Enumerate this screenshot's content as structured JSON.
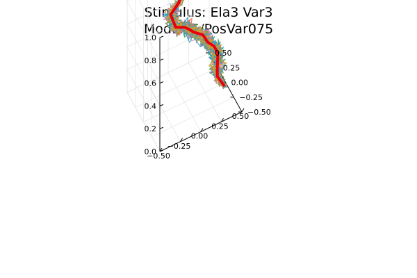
{
  "chart_data": {
    "type": "line3d",
    "title_lines": [
      "Stimulus: Ela3 Var3",
      "Modelv5/PosVar075"
    ],
    "xlabel": "",
    "ylabel": "",
    "zlabel": "",
    "xlim": [
      -0.5,
      0.5
    ],
    "ylim": [
      -0.5,
      0.5
    ],
    "zlim": [
      0.0,
      1.0
    ],
    "x_ticks": [
      -0.5,
      -0.25,
      0.0,
      0.25,
      0.5
    ],
    "x_tick_labels": [
      "−0.50",
      "−0.25",
      "0.00",
      "0.25",
      "0.50"
    ],
    "y_ticks": [
      -0.5,
      -0.25,
      0.0,
      0.25,
      0.5
    ],
    "y_tick_labels": [
      "−0.50",
      "−0.25",
      "0.00",
      "0.25",
      "0.50"
    ],
    "z_ticks": [
      0.0,
      0.2,
      0.4,
      0.6,
      0.8,
      1.0
    ],
    "z_tick_labels": [
      "0.0",
      "0.2",
      "0.4",
      "0.6",
      "0.8",
      "1.0"
    ],
    "grid": true,
    "legend": "none",
    "mean_series": {
      "color": "#e8000b",
      "points": [
        [
          0.42,
          -0.15,
          0.08
        ],
        [
          0.38,
          -0.05,
          0.12
        ],
        [
          0.4,
          0.0,
          0.16
        ],
        [
          0.43,
          0.06,
          0.25
        ],
        [
          0.4,
          0.1,
          0.3
        ],
        [
          0.33,
          0.12,
          0.35
        ],
        [
          0.28,
          0.14,
          0.42
        ],
        [
          0.18,
          0.18,
          0.46
        ],
        [
          0.13,
          0.18,
          0.5
        ],
        [
          0.08,
          0.19,
          0.53
        ],
        [
          -0.02,
          0.22,
          0.55
        ],
        [
          -0.05,
          0.3,
          0.63
        ],
        [
          0.05,
          0.3,
          0.7
        ],
        [
          0.2,
          0.4,
          0.82
        ]
      ]
    },
    "trial_colors": [
      "#3b8bc2",
      "#e26f46",
      "#3ea84a",
      "#9467bd",
      "#5a9a4a",
      "#a7a23a",
      "#e07fa0",
      "#8c8c8c",
      "#2ca1c8",
      "#d0a030"
    ]
  }
}
